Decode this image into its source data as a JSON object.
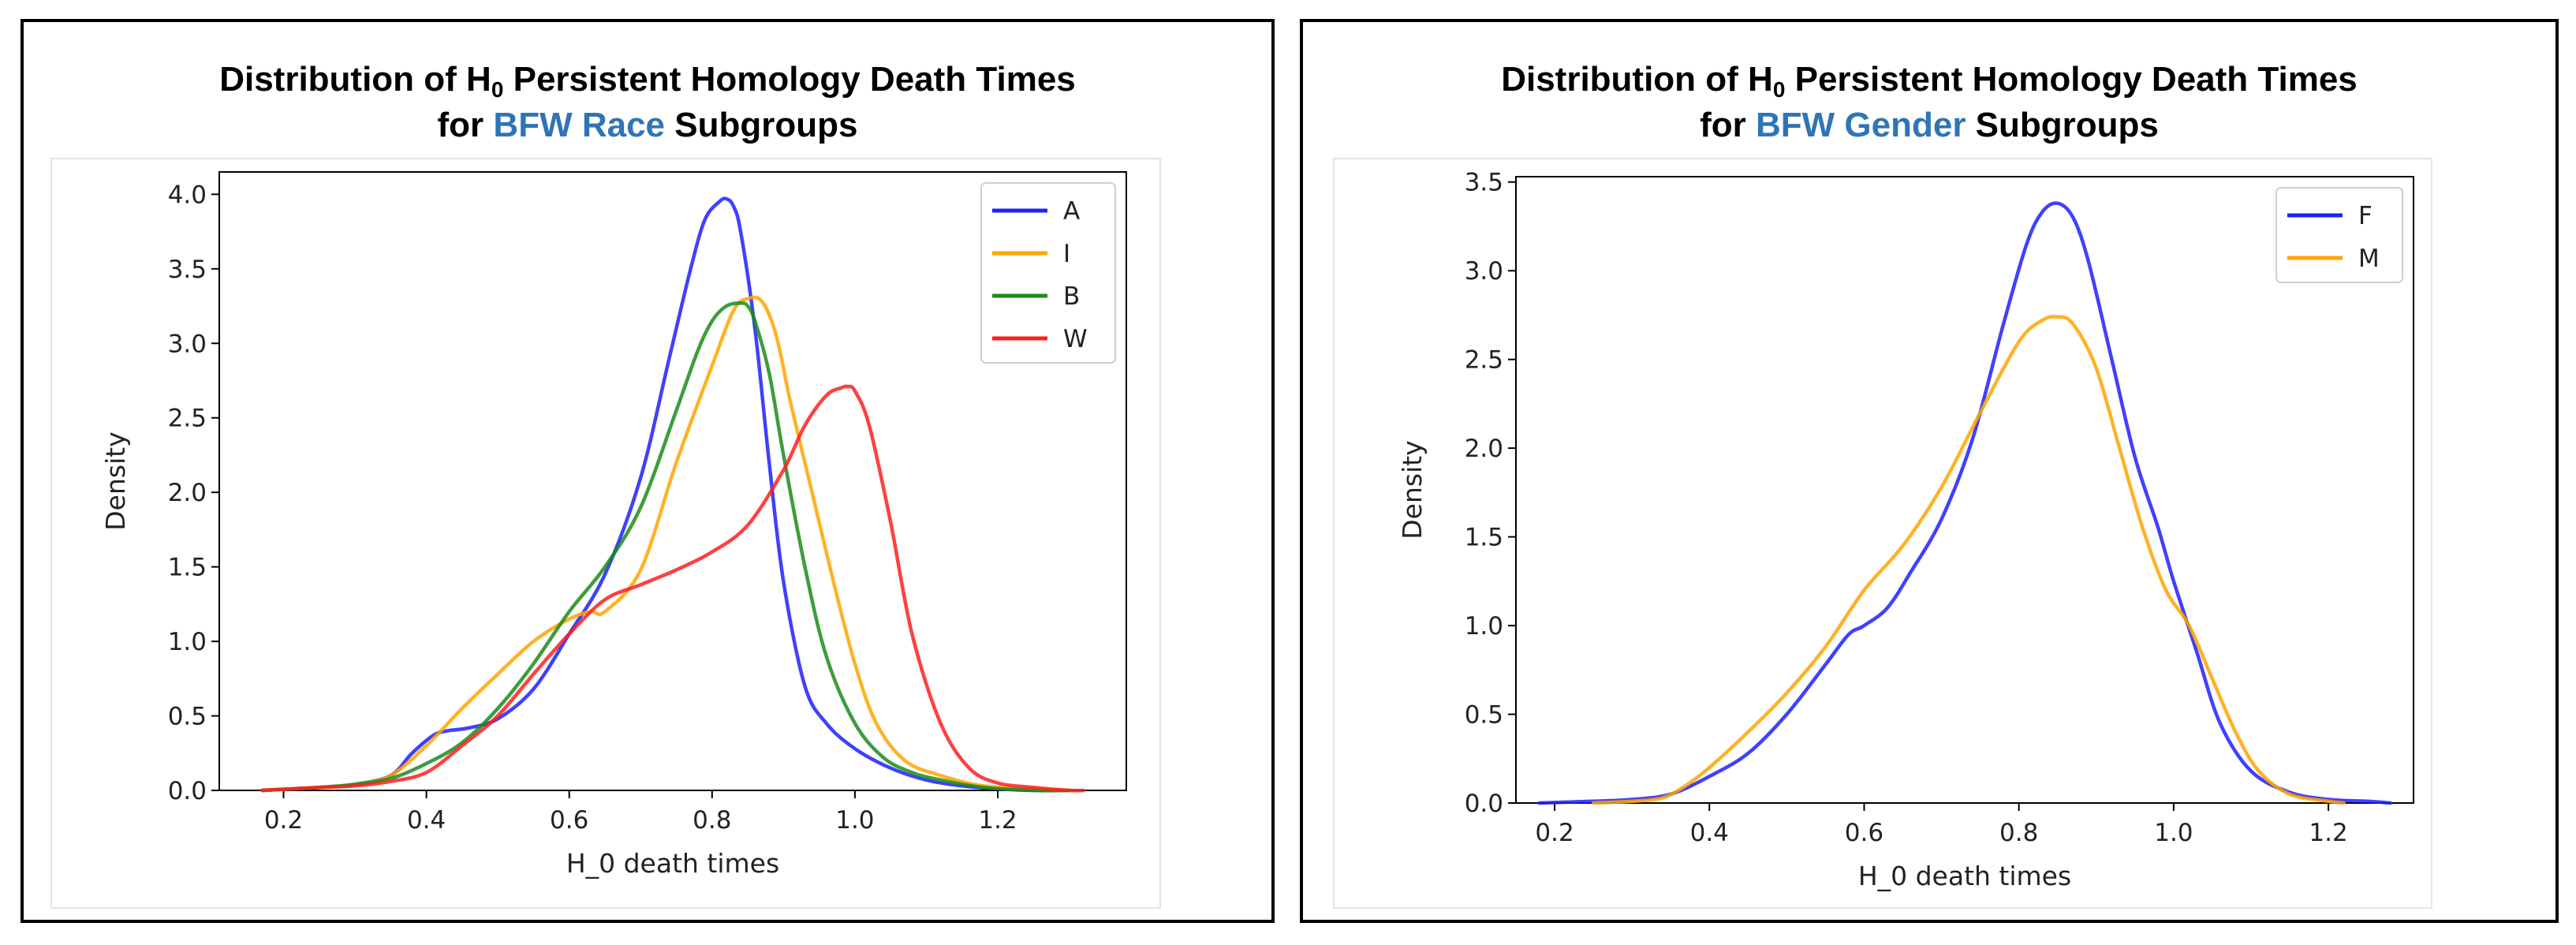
{
  "chart_data": [
    {
      "type": "line",
      "title_line1_pre": "Distribution of H",
      "title_sub": "0",
      "title_line1_post": " Persistent Homology Death Times",
      "title_line2_pre": "for ",
      "title_line2_highlight": "BFW Race",
      "title_line2_post": " Subgroups",
      "highlight_color": "#2e75b6",
      "xlabel": "H_0 death times",
      "ylabel": "Density",
      "xlim": [
        0.11,
        1.38
      ],
      "ylim": [
        0,
        4.15
      ],
      "xticks": [
        0.2,
        0.4,
        0.6,
        0.8,
        1.0,
        1.2
      ],
      "xtick_labels": [
        "0.2",
        "0.4",
        "0.6",
        "0.8",
        "1.0",
        "1.2"
      ],
      "yticks": [
        0,
        0.5,
        1.0,
        1.5,
        2.0,
        2.5,
        3.0,
        3.5,
        4.0
      ],
      "ytick_labels": [
        "0.0",
        "0.5",
        "1.0",
        "1.5",
        "2.0",
        "2.5",
        "3.0",
        "3.5",
        "4.0"
      ],
      "legend_position": "top-right",
      "series": [
        {
          "name": "A",
          "color": "#1f1fff",
          "x": [
            0.17,
            0.25,
            0.3,
            0.35,
            0.38,
            0.41,
            0.43,
            0.46,
            0.5,
            0.55,
            0.6,
            0.65,
            0.7,
            0.74,
            0.77,
            0.79,
            0.81,
            0.82,
            0.83,
            0.84,
            0.86,
            0.88,
            0.9,
            0.93,
            0.96,
            1.0,
            1.05,
            1.1,
            1.15,
            1.2,
            1.25,
            1.3
          ],
          "y": [
            0.0,
            0.02,
            0.04,
            0.1,
            0.25,
            0.37,
            0.4,
            0.42,
            0.48,
            0.68,
            1.05,
            1.45,
            2.1,
            2.9,
            3.5,
            3.83,
            3.95,
            3.97,
            3.92,
            3.75,
            3.1,
            2.2,
            1.4,
            0.7,
            0.45,
            0.28,
            0.15,
            0.07,
            0.03,
            0.01,
            0.0,
            0.0
          ]
        },
        {
          "name": "I",
          "color": "#ffa500",
          "x": [
            0.17,
            0.25,
            0.3,
            0.35,
            0.4,
            0.45,
            0.5,
            0.55,
            0.6,
            0.63,
            0.65,
            0.7,
            0.75,
            0.8,
            0.83,
            0.85,
            0.87,
            0.89,
            0.91,
            0.94,
            0.97,
            1.0,
            1.03,
            1.07,
            1.12,
            1.18,
            1.25,
            1.3
          ],
          "y": [
            0.0,
            0.02,
            0.04,
            0.1,
            0.3,
            0.55,
            0.78,
            1.0,
            1.15,
            1.2,
            1.2,
            1.48,
            2.2,
            2.85,
            3.22,
            3.3,
            3.28,
            3.05,
            2.6,
            2.0,
            1.4,
            0.85,
            0.45,
            0.2,
            0.1,
            0.03,
            0.01,
            0.0
          ]
        },
        {
          "name": "B",
          "color": "#1a8c1a",
          "x": [
            0.17,
            0.25,
            0.3,
            0.35,
            0.4,
            0.45,
            0.5,
            0.55,
            0.6,
            0.65,
            0.7,
            0.75,
            0.78,
            0.8,
            0.82,
            0.84,
            0.85,
            0.86,
            0.88,
            0.9,
            0.93,
            0.96,
            1.0,
            1.04,
            1.08,
            1.12,
            1.18,
            1.25,
            1.3
          ],
          "y": [
            0.0,
            0.02,
            0.04,
            0.08,
            0.18,
            0.32,
            0.55,
            0.85,
            1.2,
            1.5,
            1.9,
            2.55,
            2.95,
            3.15,
            3.25,
            3.27,
            3.25,
            3.15,
            2.8,
            2.25,
            1.5,
            0.9,
            0.45,
            0.22,
            0.12,
            0.07,
            0.02,
            0.0,
            0.0
          ]
        },
        {
          "name": "W",
          "color": "#ff1f1f",
          "x": [
            0.17,
            0.25,
            0.3,
            0.35,
            0.4,
            0.45,
            0.5,
            0.55,
            0.6,
            0.65,
            0.7,
            0.75,
            0.8,
            0.85,
            0.9,
            0.93,
            0.96,
            0.98,
            0.99,
            1.0,
            1.02,
            1.05,
            1.08,
            1.12,
            1.16,
            1.2,
            1.25,
            1.3,
            1.32
          ],
          "y": [
            0.0,
            0.02,
            0.03,
            0.06,
            0.12,
            0.3,
            0.5,
            0.78,
            1.05,
            1.28,
            1.38,
            1.48,
            1.6,
            1.78,
            2.15,
            2.45,
            2.65,
            2.7,
            2.71,
            2.68,
            2.45,
            1.8,
            1.05,
            0.45,
            0.15,
            0.05,
            0.02,
            0.0,
            0.0
          ]
        }
      ]
    },
    {
      "type": "line",
      "title_line1_pre": "Distribution of H",
      "title_sub": "0",
      "title_line1_post": " Persistent Homology Death Times",
      "title_line2_pre": "for ",
      "title_line2_highlight": "BFW Gender",
      "title_line2_post": " Subgroups",
      "highlight_color": "#2e75b6",
      "xlabel": "H_0 death times",
      "ylabel": "Density",
      "xlim": [
        0.15,
        1.31
      ],
      "ylim": [
        0,
        3.53
      ],
      "xticks": [
        0.2,
        0.4,
        0.6,
        0.8,
        1.0,
        1.2
      ],
      "xtick_labels": [
        "0.2",
        "0.4",
        "0.6",
        "0.8",
        "1.0",
        "1.2"
      ],
      "yticks": [
        0,
        0.5,
        1.0,
        1.5,
        2.0,
        2.5,
        3.0,
        3.5
      ],
      "ytick_labels": [
        "0.0",
        "0.5",
        "1.0",
        "1.5",
        "2.0",
        "2.5",
        "3.0",
        "3.5"
      ],
      "legend_position": "top-right",
      "series": [
        {
          "name": "F",
          "color": "#1f1fff",
          "x": [
            0.18,
            0.25,
            0.3,
            0.35,
            0.4,
            0.45,
            0.5,
            0.55,
            0.58,
            0.6,
            0.63,
            0.66,
            0.7,
            0.74,
            0.78,
            0.81,
            0.83,
            0.85,
            0.87,
            0.89,
            0.92,
            0.95,
            0.98,
            1.0,
            1.03,
            1.06,
            1.1,
            1.15,
            1.2,
            1.25,
            1.28
          ],
          "y": [
            0.0,
            0.01,
            0.02,
            0.05,
            0.15,
            0.28,
            0.5,
            0.78,
            0.95,
            1.0,
            1.1,
            1.3,
            1.6,
            2.05,
            2.7,
            3.15,
            3.33,
            3.38,
            3.3,
            3.05,
            2.5,
            1.95,
            1.55,
            1.25,
            0.85,
            0.45,
            0.18,
            0.06,
            0.02,
            0.01,
            0.0
          ]
        },
        {
          "name": "M",
          "color": "#ffa500",
          "x": [
            0.25,
            0.3,
            0.34,
            0.37,
            0.4,
            0.45,
            0.5,
            0.55,
            0.6,
            0.65,
            0.7,
            0.75,
            0.8,
            0.83,
            0.85,
            0.87,
            0.9,
            0.93,
            0.96,
            0.99,
            1.02,
            1.05,
            1.08,
            1.11,
            1.15,
            1.2,
            1.22
          ],
          "y": [
            0.0,
            0.01,
            0.03,
            0.1,
            0.2,
            0.4,
            0.62,
            0.88,
            1.2,
            1.45,
            1.78,
            2.2,
            2.6,
            2.72,
            2.74,
            2.7,
            2.45,
            2.0,
            1.55,
            1.2,
            1.0,
            0.7,
            0.4,
            0.18,
            0.05,
            0.01,
            0.0
          ]
        }
      ]
    }
  ]
}
